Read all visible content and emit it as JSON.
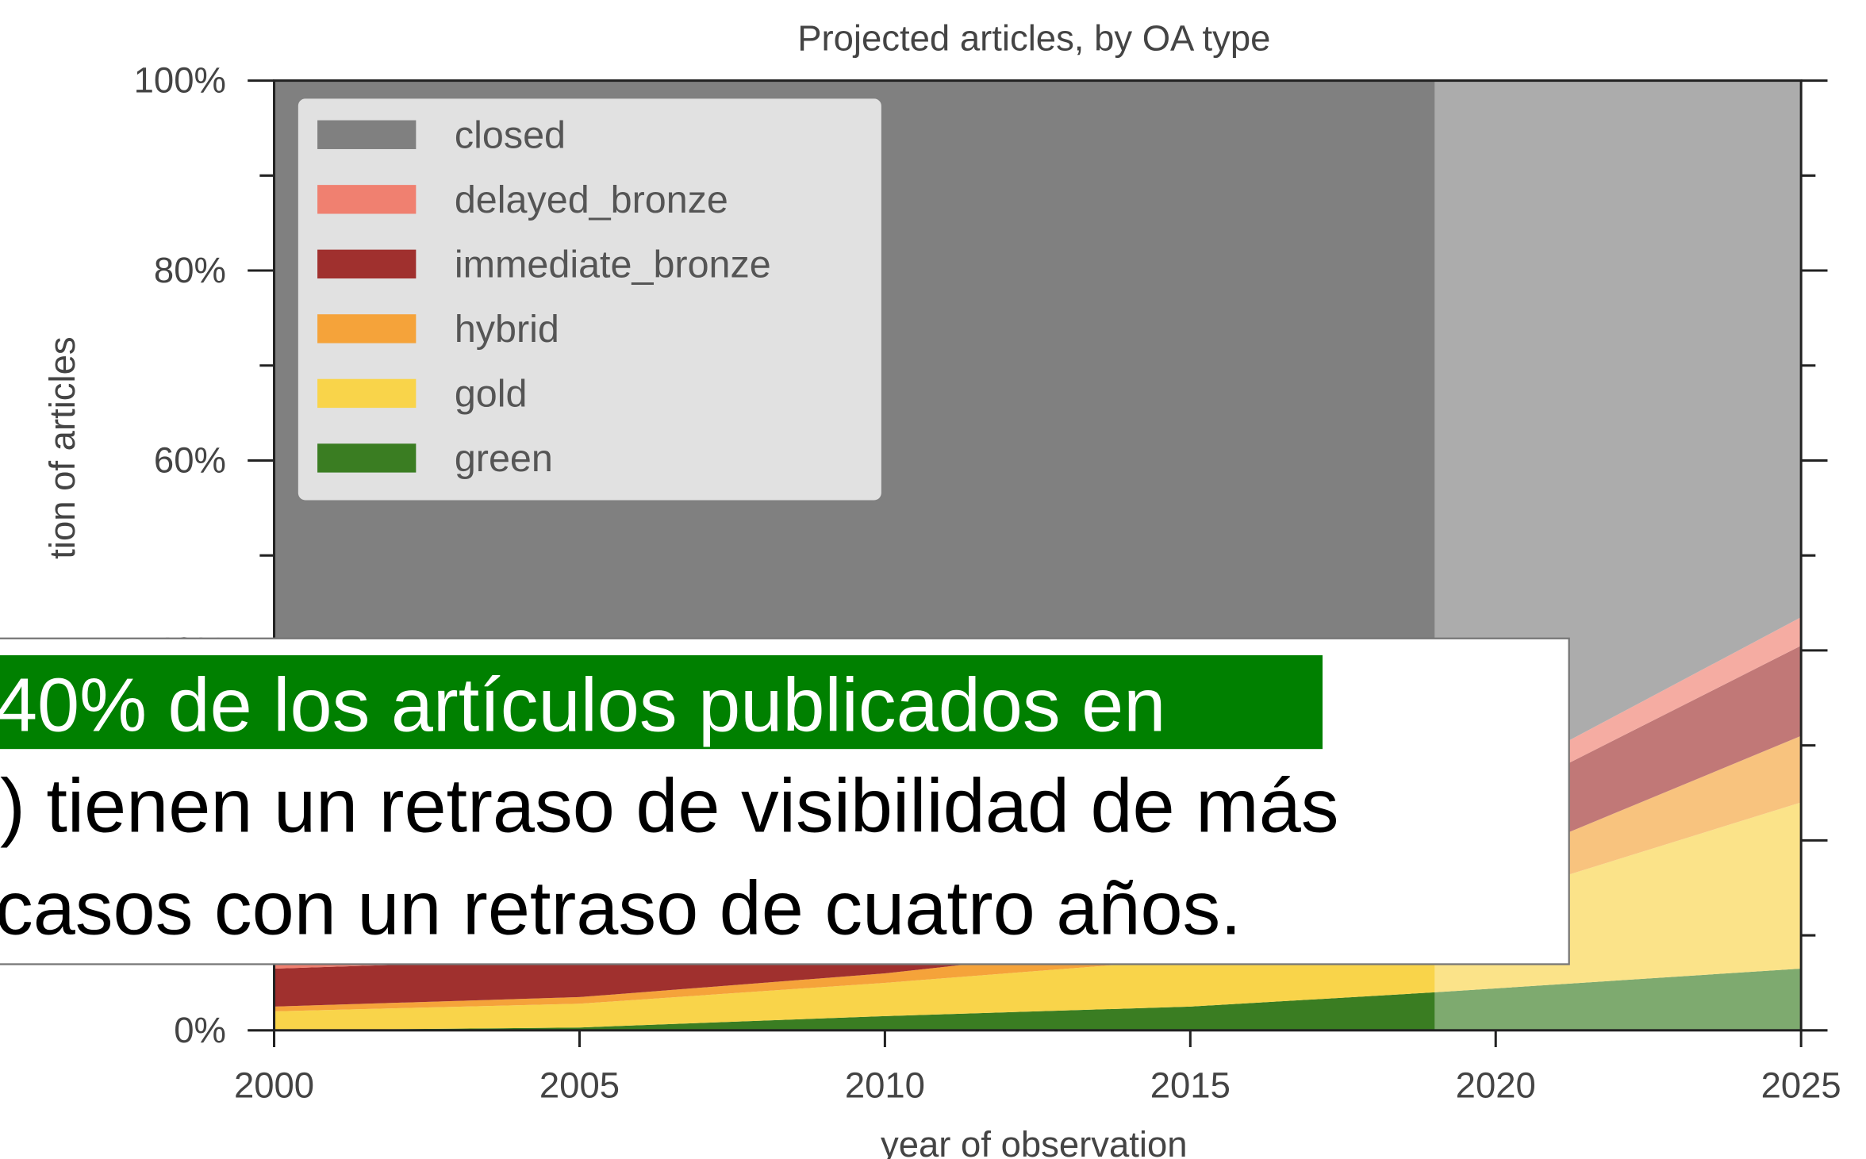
{
  "chart_data": {
    "type": "stackedarea",
    "title": "Projected articles, by OA type",
    "x_label": "year of observation",
    "y_label": "tion of articles",
    "x": [
      2000,
      2005,
      2010,
      2015,
      2019,
      2025
    ],
    "series": [
      {
        "name": "green",
        "color": "#3a7d22",
        "values": [
          0,
          0.3,
          1.5,
          2.5,
          4,
          6.5
        ]
      },
      {
        "name": "gold",
        "color": "#f9d44a",
        "values": [
          2,
          2.5,
          3.5,
          5,
          8,
          17.5
        ]
      },
      {
        "name": "hybrid",
        "color": "#f5a33a",
        "values": [
          0.5,
          0.7,
          1,
          2,
          3,
          7
        ]
      },
      {
        "name": "immediate_bronze",
        "color": "#a0302e",
        "values": [
          4,
          4,
          3,
          4,
          6,
          9.5
        ]
      },
      {
        "name": "delayed_bronze",
        "color": "#f08070",
        "values": [
          0.5,
          0.5,
          1,
          1.5,
          2,
          3
        ]
      },
      {
        "name": "closed",
        "color": "#808080",
        "values": [
          93,
          92,
          90,
          85,
          77,
          56.5
        ]
      }
    ],
    "projected_from": 2019,
    "xlim": [
      2000,
      2025
    ],
    "xticks": [
      2000,
      2005,
      2010,
      2015,
      2020,
      2025
    ],
    "ylim": [
      0,
      100
    ],
    "yticks": [
      {
        "value": 0,
        "label": "0%"
      },
      {
        "value": 20,
        "label": "20%"
      },
      {
        "value": 40,
        "label": "40%"
      },
      {
        "value": 60,
        "label": "60%"
      },
      {
        "value": 80,
        "label": "80%"
      },
      {
        "value": 100,
        "label": "100%"
      }
    ],
    "yticks_minor": [
      10,
      30,
      50,
      70,
      90
    ],
    "legend": "upper left"
  },
  "overlay": {
    "lines": [
      "40% de los artículos publicados en",
      ") tienen un retraso de visibilidad de más",
      "casos con un retraso de cuatro años."
    ]
  }
}
